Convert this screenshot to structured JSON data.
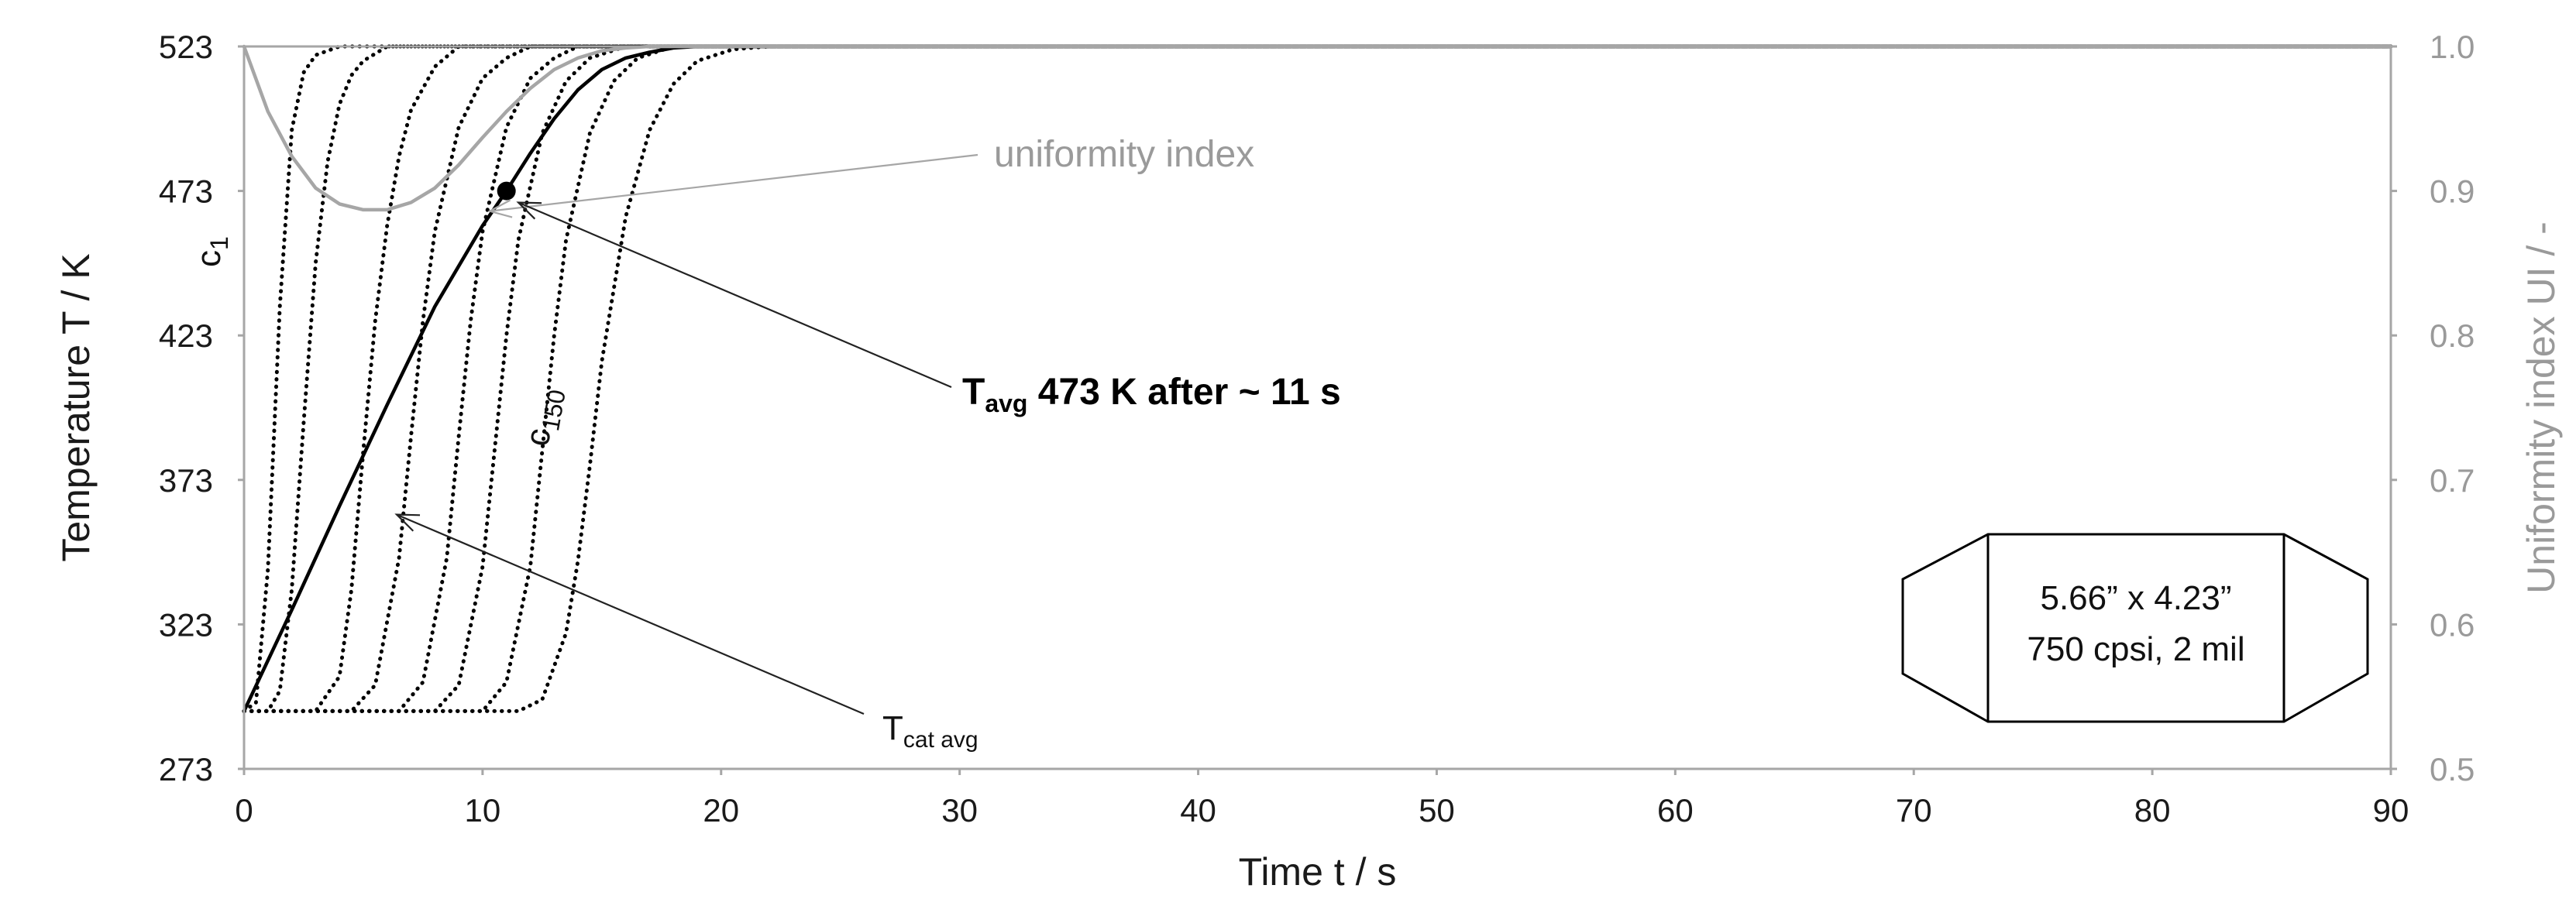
{
  "chart_data": {
    "type": "line",
    "title": "",
    "xlabel": "Time  t  / s",
    "ylabel": "Temperature T / K",
    "ylabel_right": "Uniformity index UI / -",
    "xlim": [
      0,
      90
    ],
    "ylim": [
      273,
      523
    ],
    "ylim_right": [
      0.5,
      1.0
    ],
    "xticks": [
      0,
      10,
      20,
      30,
      40,
      50,
      60,
      70,
      80,
      90
    ],
    "yticks": [
      273,
      323,
      373,
      423,
      473,
      523
    ],
    "yticks_right": [
      "0.5",
      "0.6",
      "0.7",
      "0.8",
      "0.9",
      "1.0"
    ],
    "grid": false,
    "colors": {
      "temperature": "#000000",
      "uniformity": "#a6a6a6",
      "cells": "#000000"
    },
    "series": [
      {
        "name": "Tcat avg",
        "axis": "left",
        "style": "solid",
        "x": [
          0,
          2,
          4,
          6,
          8,
          10,
          11,
          12,
          13,
          14,
          15,
          16,
          17,
          18,
          19,
          20,
          90
        ],
        "y": [
          293,
          328,
          364,
          399,
          433,
          461,
          473,
          486,
          498,
          508,
          515,
          519,
          521,
          522.5,
          523,
          523,
          523
        ]
      },
      {
        "name": "uniformity index",
        "axis": "right",
        "style": "solid",
        "x": [
          0,
          1,
          2,
          3,
          4,
          5,
          6,
          7,
          8,
          9,
          10,
          11,
          12,
          13,
          14,
          15,
          16,
          17,
          18,
          20,
          90
        ],
        "y": [
          1.0,
          0.955,
          0.924,
          0.902,
          0.891,
          0.887,
          0.887,
          0.892,
          0.902,
          0.918,
          0.937,
          0.955,
          0.971,
          0.984,
          0.992,
          0.997,
          0.999,
          1.0,
          1.0,
          1.0,
          1.0
        ]
      },
      {
        "id": "c1",
        "axis": "left",
        "style": "dotted",
        "x": [
          0,
          0.5,
          1,
          1.5,
          2,
          2.5,
          3,
          4,
          90
        ],
        "y": [
          293,
          296,
          342,
          433,
          494,
          514,
          520,
          523,
          523
        ]
      },
      {
        "axis": "left",
        "style": "dotted",
        "x": [
          0,
          1,
          1.5,
          2,
          2.5,
          3,
          3.5,
          4,
          4.5,
          5,
          6,
          90
        ],
        "y": [
          293,
          293,
          300,
          335,
          393,
          448,
          483,
          503,
          513,
          518,
          523,
          523
        ]
      },
      {
        "axis": "left",
        "style": "dotted",
        "x": [
          0,
          3,
          4,
          4.5,
          5,
          5.5,
          6,
          6.5,
          7,
          8,
          9,
          90
        ],
        "y": [
          293,
          293,
          305,
          335,
          383,
          428,
          461,
          485,
          501,
          516,
          523,
          523
        ]
      },
      {
        "axis": "left",
        "style": "dotted",
        "x": [
          0,
          4.5,
          5.5,
          6.5,
          7,
          7.5,
          8,
          9,
          10,
          11,
          12,
          90
        ],
        "y": [
          293,
          293,
          302,
          346,
          388,
          428,
          459,
          495,
          512,
          519,
          523,
          523
        ]
      },
      {
        "axis": "left",
        "style": "dotted",
        "x": [
          0,
          6.5,
          7.5,
          8.5,
          9,
          9.5,
          10,
          11,
          12,
          13,
          14,
          90
        ],
        "y": [
          293,
          293,
          303,
          346,
          388,
          428,
          459,
          495,
          512,
          519,
          523,
          523
        ]
      },
      {
        "axis": "left",
        "style": "dotted",
        "x": [
          0,
          8,
          9,
          10,
          10.5,
          11,
          11.5,
          12.5,
          13.5,
          14.5,
          16,
          90
        ],
        "y": [
          293,
          293,
          302,
          343,
          383,
          423,
          456,
          493,
          511,
          519,
          523,
          523
        ]
      },
      {
        "axis": "left",
        "style": "dotted",
        "x": [
          0,
          10,
          11,
          12,
          12.5,
          13,
          13.5,
          14.5,
          15.5,
          16.5,
          18,
          90
        ],
        "y": [
          293,
          293,
          303,
          343,
          383,
          423,
          456,
          493,
          511,
          519,
          523,
          523
        ]
      },
      {
        "id": "c150",
        "axis": "left",
        "style": "dotted",
        "x": [
          0,
          11.5,
          12.5,
          13.5,
          14,
          14.5,
          15,
          16,
          17,
          18,
          19,
          20.5,
          22,
          90
        ],
        "y": [
          293,
          293,
          297,
          320,
          345,
          378,
          414,
          464,
          494,
          510,
          518,
          522,
          523,
          523
        ]
      }
    ],
    "highlight_point": {
      "x": 11,
      "y": 473
    },
    "annotations": {
      "uniformity_label": "uniformity index",
      "c1_main": "c",
      "c1_sub": "1",
      "c150_main": "c",
      "c150_sub": "150",
      "tavg_main": "T",
      "tavg_sub": "avg",
      "tavg_rest": " 473 K after ~ 11 s",
      "tcat_main": "T",
      "tcat_sub": "cat avg",
      "box_line1": "5.66” x 4.23”",
      "box_line2": "750 cpsi, 2 mil"
    }
  }
}
